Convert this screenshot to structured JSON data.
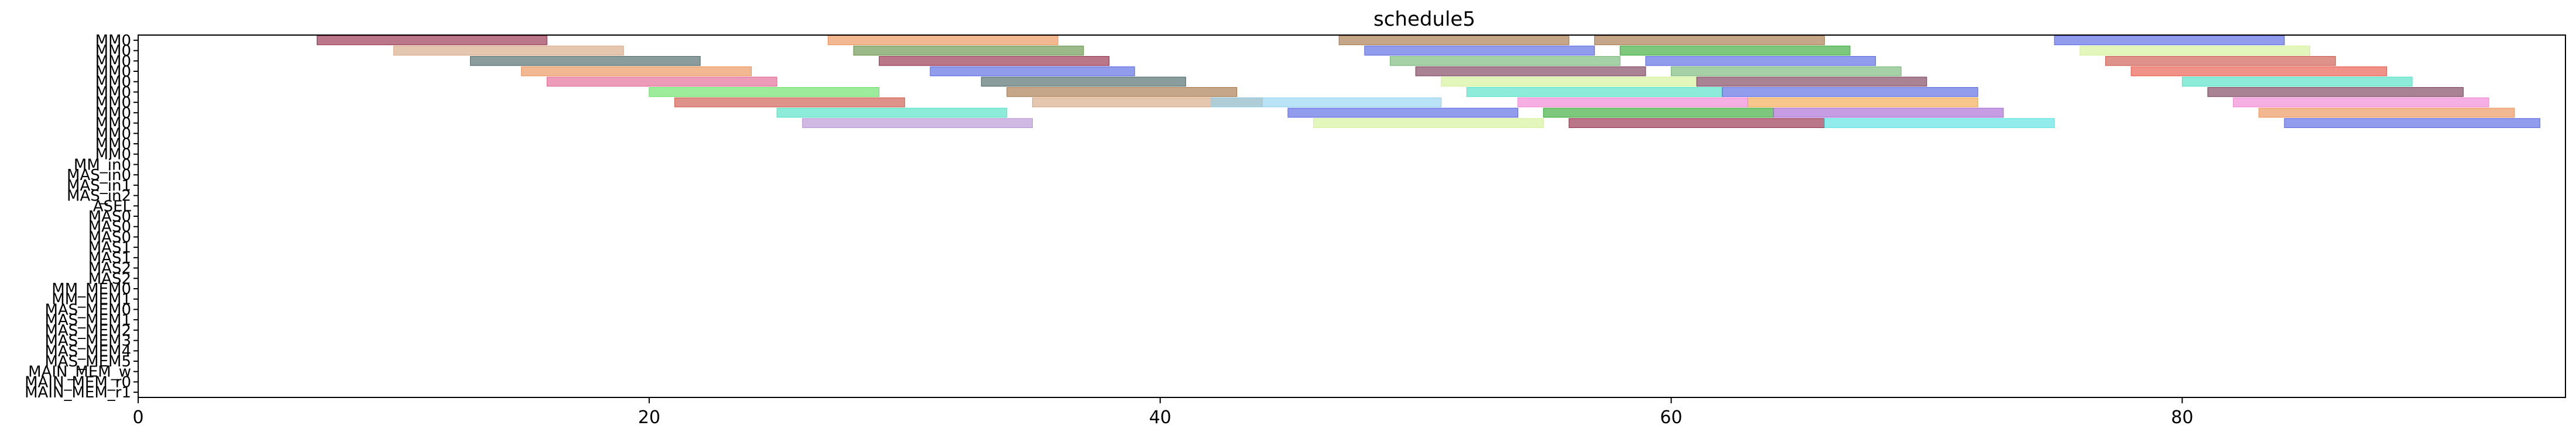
{
  "chart_data": {
    "type": "gantt",
    "title": "schedule5",
    "xlabel": "",
    "ylabel": "",
    "xlim": [
      0,
      95
    ],
    "xticks": [
      0,
      20,
      40,
      60,
      80
    ],
    "grid": false,
    "rows": [
      "MM0",
      "MM0",
      "MM0",
      "MM0",
      "MM0",
      "MM0",
      "MM0",
      "MM0",
      "MM0",
      "MM0",
      "MM0",
      "MM0",
      "MM_in0",
      "MAS_in0",
      "MAS_in1",
      "MAS_in2",
      "ASEL",
      "MAS0",
      "MAS0",
      "MAS0",
      "MAS1",
      "MAS1",
      "MAS2",
      "MAS2",
      "MM_MEM0",
      "MM_MEM1",
      "MAS_MEM0",
      "MAS_MEM1",
      "MAS_MEM2",
      "MAS_MEM3",
      "MAS_MEM4",
      "MAS_MEM5",
      "MAIN_MEM_w",
      "MAIN_MEM_r0",
      "MAIN_MEM_r1"
    ],
    "palette": [
      "#8b1c3a",
      "#d4a17a",
      "#3d5a5a",
      "#e8894a",
      "#6f2f4c",
      "#27a327",
      "#c84a3a",
      "#3fe0c0",
      "#e84a3a",
      "#4a5ae0",
      "#f07ad0",
      "#8ad0f0",
      "#6ab06a",
      "#9a9a2a",
      "#3a7a9a",
      "#c0c0c0",
      "#f0e05a",
      "#5ae05a",
      "#a05ad0",
      "#f0a040",
      "#40a0f0",
      "#e05a8a",
      "#5a8a3a",
      "#b08ad0",
      "#4ae0e0",
      "#a06a3a",
      "#f0c8a0",
      "#30c060",
      "#8a8ae0",
      "#d0f090"
    ],
    "tasks": [
      [
        0,
        7,
        16,
        0
      ],
      [
        0,
        27,
        36,
        3
      ],
      [
        0,
        47,
        56,
        25
      ],
      [
        0,
        57,
        66,
        25
      ],
      [
        0,
        75,
        84,
        9
      ],
      [
        1,
        10,
        19,
        1
      ],
      [
        1,
        28,
        37,
        22
      ],
      [
        1,
        48,
        57,
        9
      ],
      [
        1,
        58,
        67,
        5
      ],
      [
        1,
        76,
        85,
        29
      ],
      [
        2,
        13,
        22,
        2
      ],
      [
        2,
        29,
        38,
        0
      ],
      [
        2,
        49,
        58,
        12
      ],
      [
        2,
        59,
        68,
        9
      ],
      [
        2,
        77,
        86,
        6
      ],
      [
        3,
        15,
        24,
        3
      ],
      [
        3,
        31,
        39,
        9
      ],
      [
        3,
        50,
        59,
        4
      ],
      [
        3,
        60,
        69,
        12
      ],
      [
        3,
        78,
        88,
        8
      ],
      [
        4,
        16,
        25,
        21
      ],
      [
        4,
        33,
        41,
        2
      ],
      [
        4,
        51,
        61,
        29
      ],
      [
        4,
        61,
        70,
        4
      ],
      [
        4,
        80,
        89,
        7
      ],
      [
        5,
        20,
        29,
        17
      ],
      [
        5,
        34,
        43,
        25
      ],
      [
        5,
        52,
        62,
        7
      ],
      [
        5,
        62,
        72,
        9
      ],
      [
        5,
        81,
        91,
        4
      ],
      [
        6,
        21,
        30,
        6
      ],
      [
        6,
        35,
        44,
        1
      ],
      [
        6,
        42,
        51,
        11
      ],
      [
        6,
        54,
        63,
        10
      ],
      [
        6,
        63,
        72,
        19
      ],
      [
        6,
        82,
        92,
        10
      ],
      [
        7,
        25,
        34,
        7
      ],
      [
        7,
        45,
        54,
        9
      ],
      [
        7,
        55,
        64,
        5
      ],
      [
        7,
        64,
        73,
        18
      ],
      [
        7,
        83,
        93,
        3
      ],
      [
        8,
        26,
        35,
        23
      ],
      [
        8,
        46,
        55,
        29
      ],
      [
        8,
        56,
        66,
        0
      ],
      [
        8,
        66,
        75,
        24
      ],
      [
        8,
        84,
        94,
        9
      ]
    ]
  }
}
